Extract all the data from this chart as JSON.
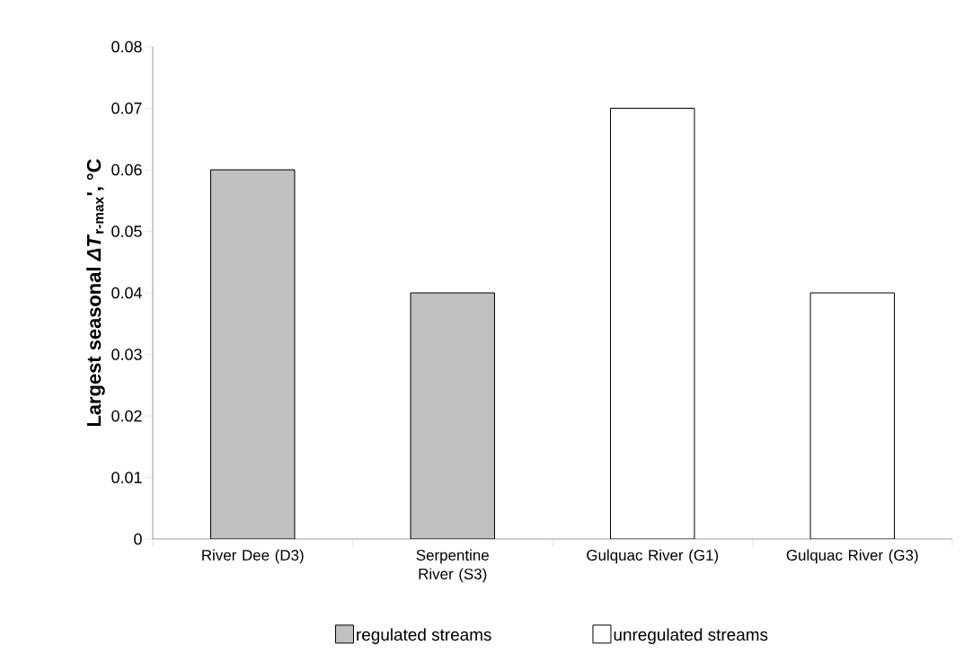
{
  "chart_data": {
    "type": "bar",
    "ylabel": "Largest seasonal *ΔT*$_{r-max}$', °C",
    "categories": [
      "River Dee (D3)",
      "Serpentine River (S3)",
      "Gulquac River (G1)",
      "Gulquac River (G3)"
    ],
    "series": [
      {
        "name": "regulated streams",
        "color": "#c0c0c0",
        "values": [
          0.06,
          0.04,
          null,
          null
        ]
      },
      {
        "name": "unregulated streams",
        "color": "#ffffff",
        "values": [
          null,
          null,
          0.07,
          0.04
        ]
      }
    ],
    "ylim": [
      0,
      0.08
    ],
    "yticks": [
      0,
      0.01,
      0.02,
      0.03,
      0.04,
      0.05,
      0.06,
      0.07,
      0.08
    ],
    "grid": false,
    "legend": "bottom"
  }
}
